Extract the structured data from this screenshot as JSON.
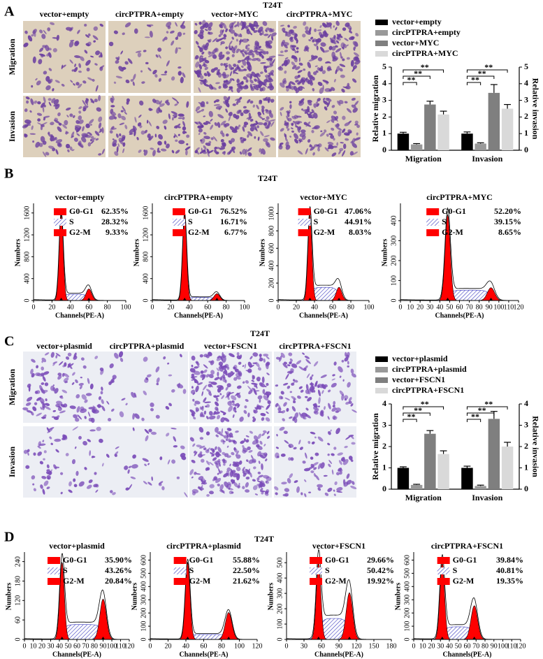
{
  "panels": [
    {
      "label": "A",
      "title": "T24T",
      "columns": [
        "vector+empty",
        "circPTPRA+empty",
        "vector+MYC",
        "circPTPRA+MYC"
      ],
      "rows": [
        "Migration",
        "Invasion"
      ]
    },
    {
      "label": "B",
      "title": "T24T"
    },
    {
      "label": "C",
      "title": "T24T",
      "columns": [
        "vector+plasmid",
        "circPTPRA+plasmid",
        "vector+FSCN1",
        "circPTPRA+FSCN1"
      ],
      "rows": [
        "Migration",
        "Invasion"
      ]
    },
    {
      "label": "D",
      "title": "T24T"
    }
  ],
  "chart_data": [
    {
      "type": "bar",
      "categories": [
        "Migration",
        "Invasion"
      ],
      "series": [
        {
          "name": "vector+empty",
          "color": "#000000",
          "values": [
            1,
            1
          ],
          "errors": [
            0.08,
            0.1
          ]
        },
        {
          "name": "circPTPRA+empty",
          "color": "#999999",
          "values": [
            0.35,
            0.4
          ],
          "errors": [
            0.05,
            0.05
          ]
        },
        {
          "name": "vector+MYC",
          "color": "#7f7f7f",
          "values": [
            2.75,
            3.45
          ],
          "errors": [
            0.2,
            0.5
          ]
        },
        {
          "name": "circPTPRA+MYC",
          "color": "#d9d9d9",
          "values": [
            2.15,
            2.5
          ],
          "errors": [
            0.2,
            0.25
          ]
        }
      ],
      "ylabel": "Relative migration",
      "y2label": "Relative invasion",
      "ylim": [
        0,
        5
      ],
      "yticks": [
        0,
        1,
        2,
        3,
        4,
        5
      ],
      "y2lim": [
        0,
        5
      ],
      "y2ticks": [
        0,
        1,
        2,
        3,
        4,
        5
      ],
      "annotations": [
        "**",
        "**",
        "**",
        "**",
        "**",
        "**"
      ]
    },
    {
      "type": "flow-histogram",
      "title": "vector+empty",
      "xlabel": "Channels(PE-A)",
      "ylabel": "Numbers",
      "xlim": [
        0,
        100
      ],
      "xticks": [
        0,
        20,
        40,
        60,
        80,
        100
      ],
      "ylim": [
        0,
        1750
      ],
      "yticks": [
        0,
        400,
        800,
        1200,
        1600
      ],
      "phases": {
        "names": [
          "G0-G1",
          "S",
          "G2-M"
        ],
        "colors": [
          "#ff0000",
          "#3b3bbf",
          "#ff0000"
        ],
        "values": [
          62.35,
          28.32,
          9.33
        ],
        "value_labels": [
          "62.35%",
          "28.32%",
          "9.33%"
        ]
      },
      "peaks": [
        30,
        60
      ]
    },
    {
      "type": "flow-histogram",
      "title": "circPTPRA+empty",
      "xlabel": "Channels(PE-A)",
      "ylabel": "Numbers",
      "xlim": [
        0,
        100
      ],
      "xticks": [
        0,
        20,
        40,
        60,
        80,
        100
      ],
      "ylim": [
        0,
        1750
      ],
      "yticks": [
        0,
        400,
        800,
        1200,
        1600
      ],
      "phases": {
        "names": [
          "G0-G1",
          "S",
          "G2-M"
        ],
        "colors": [
          "#ff0000",
          "#3b3bbf",
          "#ff0000"
        ],
        "values": [
          76.52,
          16.71,
          6.77
        ],
        "value_labels": [
          "76.52%",
          "16.71%",
          "6.77%"
        ]
      },
      "peaks": [
        35,
        70
      ]
    },
    {
      "type": "flow-histogram",
      "title": "vector+MYC",
      "xlabel": "Channels(PE-A)",
      "ylabel": "Numbers",
      "xlim": [
        0,
        100
      ],
      "xticks": [
        0,
        20,
        40,
        60,
        80,
        100
      ],
      "ylim": [
        0,
        1100
      ],
      "yticks": [
        0,
        200,
        400,
        600,
        800,
        1000
      ],
      "phases": {
        "names": [
          "G0-G1",
          "S",
          "G2-M"
        ],
        "colors": [
          "#ff0000",
          "#3b3bbf",
          "#ff0000"
        ],
        "values": [
          47.06,
          44.91,
          8.03
        ],
        "value_labels": [
          "47.06%",
          "44.91%",
          "8.03%"
        ]
      },
      "peaks": [
        35,
        67
      ]
    },
    {
      "type": "flow-histogram",
      "title": "circPTPRA+MYC",
      "xlabel": "Channels(PE-A)",
      "ylabel": "Numbers",
      "xlim": [
        0,
        120
      ],
      "xticks": [
        0,
        10,
        20,
        30,
        40,
        50,
        60,
        70,
        80,
        90,
        100,
        110,
        120
      ],
      "ylim": [
        0,
        480
      ],
      "yticks": [
        0,
        100,
        200,
        300,
        400
      ],
      "phases": {
        "names": [
          "G0-G1",
          "S",
          "G2-M"
        ],
        "colors": [
          "#ff0000",
          "#3b3bbf",
          "#ff0000"
        ],
        "values": [
          52.2,
          39.15,
          8.65
        ],
        "value_labels": [
          "52.20%",
          "39.15%",
          "8.65%"
        ]
      },
      "peaks": [
        48,
        92
      ]
    },
    {
      "type": "bar",
      "categories": [
        "Migration",
        "Invasion"
      ],
      "series": [
        {
          "name": "vector+plasmid",
          "color": "#000000",
          "values": [
            1,
            1
          ],
          "errors": [
            0.05,
            0.08
          ]
        },
        {
          "name": "circPTPRA+plasmid",
          "color": "#999999",
          "values": [
            0.2,
            0.15
          ],
          "errors": [
            0.03,
            0.04
          ]
        },
        {
          "name": "vector+FSCN1",
          "color": "#7f7f7f",
          "values": [
            2.6,
            3.3
          ],
          "errors": [
            0.15,
            0.35
          ]
        },
        {
          "name": "circPTPRA+FSCN1",
          "color": "#d9d9d9",
          "values": [
            1.65,
            2
          ],
          "errors": [
            0.15,
            0.2
          ]
        }
      ],
      "ylabel": "Relative migration",
      "y2label": "Relative invasion",
      "ylim": [
        0,
        4
      ],
      "yticks": [
        0,
        1,
        2,
        3,
        4
      ],
      "y2lim": [
        0,
        4
      ],
      "y2ticks": [
        0,
        1,
        2,
        3,
        4
      ],
      "annotations": [
        "**",
        "**",
        "**",
        "**",
        "**",
        "**"
      ]
    },
    {
      "type": "flow-histogram",
      "title": "vector+plasmid",
      "xlabel": "Channels(PE-A)",
      "ylabel": "Numbers",
      "xlim": [
        0,
        120
      ],
      "xticks": [
        0,
        10,
        20,
        30,
        40,
        50,
        60,
        70,
        80,
        90,
        100,
        110,
        120
      ],
      "ylim": [
        0,
        265
      ],
      "yticks": [
        0,
        60,
        120,
        180,
        240
      ],
      "phases": {
        "names": [
          "G0-G1",
          "S",
          "G2-M"
        ],
        "colors": [
          "#ff0000",
          "#3b3bbf",
          "#ff0000"
        ],
        "values": [
          35.9,
          43.26,
          20.84
        ],
        "value_labels": [
          "35.90%",
          "43.26%",
          "20.84%"
        ]
      },
      "peaks": [
        43,
        90
      ]
    },
    {
      "type": "flow-histogram",
      "title": "circPTPRA+plasmid",
      "xlabel": "Channels(PE-A)",
      "ylabel": "Numbers",
      "xlim": [
        0,
        120
      ],
      "xticks": [
        0,
        20,
        40,
        60,
        80,
        100,
        120
      ],
      "ylim": [
        0,
        650
      ],
      "yticks": [
        0,
        100,
        200,
        300,
        400,
        500,
        600
      ],
      "phases": {
        "names": [
          "G0-G1",
          "S",
          "G2-M"
        ],
        "colors": [
          "#ff0000",
          "#3b3bbf",
          "#ff0000"
        ],
        "values": [
          55.88,
          22.5,
          21.62
        ],
        "value_labels": [
          "55.88%",
          "22.50%",
          "21.62%"
        ]
      },
      "peaks": [
        42,
        88
      ]
    },
    {
      "type": "flow-histogram",
      "title": "vector+FSCN1",
      "xlabel": "Channels(PE-A)",
      "ylabel": "Numbers",
      "xlim": [
        0,
        180
      ],
      "xticks": [
        0,
        30,
        60,
        90,
        120,
        150,
        180
      ],
      "ylim": [
        0,
        560
      ],
      "yticks": [
        0,
        100,
        200,
        300,
        400,
        500
      ],
      "phases": {
        "names": [
          "G0-G1",
          "S",
          "G2-M"
        ],
        "colors": [
          "#ff0000",
          "#3b3bbf",
          "#ff0000"
        ],
        "values": [
          29.66,
          50.42,
          19.92
        ],
        "value_labels": [
          "29.66%",
          "50.42%",
          "19.92%"
        ]
      },
      "peaks": [
        55,
        108
      ]
    },
    {
      "type": "flow-histogram",
      "title": "circPTPRA+FSCN1",
      "xlabel": "Channels(PE-A)",
      "ylabel": "Numbers",
      "xlim": [
        0,
        120
      ],
      "xticks": [
        0,
        10,
        20,
        30,
        40,
        50,
        60,
        70,
        80,
        90,
        100,
        110,
        120
      ],
      "ylim": [
        0,
        650
      ],
      "yticks": [
        0,
        100,
        200,
        300,
        400,
        500,
        600
      ],
      "phases": {
        "names": [
          "G0-G1",
          "S",
          "G2-M"
        ],
        "colors": [
          "#ff0000",
          "#3b3bbf",
          "#ff0000"
        ],
        "values": [
          39.84,
          40.81,
          19.35
        ],
        "value_labels": [
          "39.84%",
          "40.81%",
          "19.35%"
        ]
      },
      "peaks": [
        32,
        68
      ]
    }
  ]
}
